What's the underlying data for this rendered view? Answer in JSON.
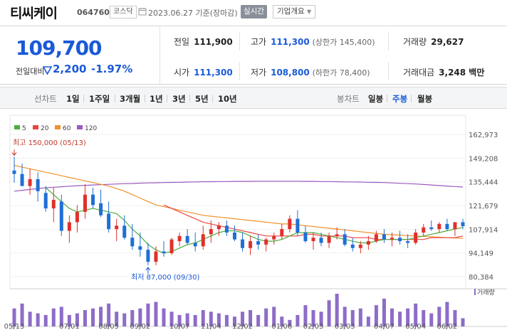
{
  "header": {
    "name": "티씨케이",
    "code": "064760",
    "market": "코스닥",
    "date_text": "2023.06.27 기준(장마감)",
    "realtime_label": "실시간",
    "info_label": "기업개요"
  },
  "quote": {
    "price": "109,700",
    "compare_label": "전일대비",
    "change": "2,200",
    "change_pct": "-1.97%",
    "prev_label": "전일",
    "prev": "111,900",
    "high_label": "고가",
    "high": "111,300",
    "upper_limit": "(상한가 145,400)",
    "volume_label": "거래량",
    "volume": "29,627",
    "open_label": "시가",
    "open": "111,300",
    "low_label": "저가",
    "low": "108,800",
    "lower_limit": "(하한가 78,400)",
    "amount_label": "거래대금",
    "amount": "3,248 백만"
  },
  "toolbar": {
    "line_label": "선차트",
    "line_opts": [
      "1일",
      "1주일",
      "3개월",
      "1년",
      "3년",
      "5년",
      "10년"
    ],
    "candle_label": "봉차트",
    "candle_opts": [
      "일봉",
      "주봉",
      "월봉"
    ],
    "candle_active": "주봉"
  },
  "colors": {
    "up": "#e0302b",
    "down": "#1f6fd6",
    "ma5": "#4cae3d",
    "ma20": "#e94540",
    "ma60": "#f0922b",
    "ma120": "#9b59c0",
    "volume": "#8e6cc8"
  },
  "chart_data": {
    "type": "candlestick",
    "legend": [
      "5",
      "20",
      "60",
      "120"
    ],
    "y_ticks": [
      162973,
      149208,
      135444,
      121679,
      107914,
      94149,
      80384
    ],
    "y_tick_labels": [
      "162,973",
      "149,208",
      "135,444",
      "121,679",
      "107,914",
      "94,149",
      "80,384"
    ],
    "ylim": [
      80384,
      162973
    ],
    "x_labels": [
      {
        "i": 0,
        "label": "05/13"
      },
      {
        "i": 7,
        "label": "07/01"
      },
      {
        "i": 12,
        "label": "08/05"
      },
      {
        "i": 16,
        "label": "09/02"
      },
      {
        "i": 21,
        "label": "10/07"
      },
      {
        "i": 25,
        "label": "11/04"
      },
      {
        "i": 29,
        "label": "12/02"
      },
      {
        "i": 34,
        "label": "01/06"
      },
      {
        "i": 38,
        "label": "02/03"
      },
      {
        "i": 42,
        "label": "03/03"
      },
      {
        "i": 47,
        "label": "04/07"
      },
      {
        "i": 51,
        "label": "05/04"
      },
      {
        "i": 55,
        "label": "06/02"
      }
    ],
    "high_annotation": "최고 150,000 (05/13)",
    "low_annotation": "최저 87,000 (09/30)",
    "volume_label": "거래량",
    "candles": [
      [
        142000,
        150000,
        135000,
        140000
      ],
      [
        140000,
        146000,
        133000,
        133000
      ],
      [
        133000,
        143000,
        128000,
        137000
      ],
      [
        137000,
        141000,
        124000,
        130000
      ],
      [
        129000,
        133000,
        118000,
        120000
      ],
      [
        120000,
        132000,
        112000,
        125000
      ],
      [
        124000,
        128000,
        104000,
        107000
      ],
      [
        107000,
        116000,
        100000,
        112000
      ],
      [
        112000,
        122000,
        106000,
        118000
      ],
      [
        118000,
        134000,
        114000,
        128000
      ],
      [
        128000,
        132000,
        120000,
        122000
      ],
      [
        123000,
        131000,
        115000,
        116000
      ],
      [
        117000,
        124000,
        106000,
        108000
      ],
      [
        108000,
        114000,
        101000,
        110000
      ],
      [
        110000,
        116000,
        102000,
        103000
      ],
      [
        103000,
        111000,
        96000,
        98000
      ],
      [
        98000,
        106000,
        92000,
        96000
      ],
      [
        96000,
        100000,
        87000,
        89000
      ],
      [
        89000,
        98000,
        87000,
        95000
      ],
      [
        95000,
        101000,
        92000,
        94000
      ],
      [
        94000,
        103000,
        93000,
        102000
      ],
      [
        101000,
        106000,
        98000,
        104000
      ],
      [
        104000,
        108000,
        99000,
        100000
      ],
      [
        100000,
        106000,
        95000,
        98000
      ],
      [
        98000,
        110000,
        96000,
        105000
      ],
      [
        105000,
        113000,
        100000,
        108000
      ],
      [
        108000,
        112000,
        104000,
        110000
      ],
      [
        110000,
        113000,
        104000,
        106000
      ],
      [
        106000,
        110000,
        101000,
        102000
      ],
      [
        102000,
        106000,
        95000,
        97000
      ],
      [
        97000,
        104000,
        93000,
        101000
      ],
      [
        101000,
        105000,
        96000,
        99000
      ],
      [
        99000,
        103000,
        95000,
        102000
      ],
      [
        102000,
        106000,
        99000,
        104000
      ],
      [
        104000,
        111000,
        102000,
        108000
      ],
      [
        108000,
        116000,
        106000,
        114000
      ],
      [
        114000,
        119000,
        104000,
        106000
      ],
      [
        106000,
        110000,
        100000,
        101000
      ],
      [
        101000,
        106000,
        96000,
        103000
      ],
      [
        103000,
        106000,
        98000,
        100000
      ],
      [
        100000,
        106000,
        97000,
        104000
      ],
      [
        104000,
        109000,
        102000,
        105000
      ],
      [
        105000,
        108000,
        98000,
        99000
      ],
      [
        99000,
        103000,
        95000,
        97000
      ],
      [
        97000,
        101000,
        94000,
        99000
      ],
      [
        99000,
        104000,
        96000,
        101000
      ],
      [
        101000,
        107000,
        100000,
        105000
      ],
      [
        105000,
        108000,
        100000,
        102000
      ],
      [
        102000,
        106000,
        98000,
        103000
      ],
      [
        103000,
        107000,
        99000,
        101000
      ],
      [
        101000,
        105000,
        97000,
        100000
      ],
      [
        100000,
        108000,
        99000,
        106000
      ],
      [
        106000,
        111000,
        104000,
        109000
      ],
      [
        109000,
        113000,
        107000,
        108000
      ],
      [
        108000,
        112000,
        106000,
        111000
      ],
      [
        111000,
        114000,
        107000,
        108000
      ],
      [
        108000,
        112000,
        104000,
        112000
      ],
      [
        112000,
        114000,
        108000,
        109700
      ]
    ],
    "ma5": [
      null,
      null,
      null,
      null,
      132000,
      128000,
      124000,
      120000,
      118000,
      119000,
      120000,
      119000,
      118000,
      117000,
      113000,
      108000,
      104000,
      99000,
      96000,
      94000,
      95000,
      97000,
      99000,
      100000,
      102000,
      104000,
      106000,
      107000,
      107000,
      106000,
      104000,
      102000,
      101000,
      101000,
      102000,
      104000,
      106000,
      106000,
      106000,
      105000,
      104000,
      103000,
      102000,
      101000,
      100000,
      100000,
      101000,
      102000,
      102000,
      102000,
      102000,
      103000,
      104000,
      105000,
      106000,
      107000,
      108000,
      109000
    ],
    "ma20": [
      null,
      null,
      null,
      null,
      null,
      null,
      null,
      null,
      null,
      null,
      null,
      null,
      null,
      null,
      null,
      null,
      null,
      null,
      null,
      122000,
      120000,
      118000,
      116000,
      114000,
      112000,
      111000,
      110000,
      109000,
      108000,
      107000,
      106000,
      105000,
      104000,
      104000,
      104000,
      104000,
      104000,
      105000,
      105000,
      104000,
      104000,
      104000,
      104000,
      103000,
      103000,
      103000,
      102000,
      102000,
      102000,
      102000,
      102000,
      102000,
      102000,
      103000,
      103000,
      103000,
      103000,
      104000
    ],
    "ma60": [
      145000,
      144000,
      143000,
      142000,
      141000,
      140000,
      139000,
      138000,
      137000,
      136000,
      135000,
      134000,
      133000,
      131500,
      130000,
      128000,
      126000,
      124000,
      122000,
      121000,
      120000,
      119000,
      118000,
      117000,
      116000,
      115500,
      115000,
      114500,
      114000,
      113500,
      113000,
      112500,
      112000,
      111500,
      111000,
      111000,
      110500,
      110000,
      109500,
      109000,
      108500,
      108000,
      107500,
      107000,
      106500,
      106000,
      105500,
      105000,
      104700,
      104500,
      104200,
      104000,
      103800,
      103500,
      103300,
      103000,
      102800,
      102700
    ],
    "ma120": [
      130000,
      130500,
      131000,
      131500,
      132000,
      132300,
      132600,
      132900,
      133200,
      133400,
      133600,
      133800,
      134000,
      134200,
      134400,
      134500,
      134700,
      134800,
      134900,
      135000,
      135100,
      135200,
      135300,
      135400,
      135500,
      135500,
      135600,
      135600,
      135700,
      135700,
      135700,
      135800,
      135800,
      135800,
      135800,
      135800,
      135800,
      135700,
      135700,
      135600,
      135600,
      135500,
      135400,
      135400,
      135300,
      135200,
      135100,
      135000,
      134800,
      134600,
      134400,
      134200,
      133900,
      133600,
      133300,
      133000,
      132700,
      132400
    ],
    "volumes": [
      0.55,
      0.7,
      0.45,
      0.4,
      0.35,
      0.55,
      0.6,
      0.35,
      0.4,
      0.5,
      0.55,
      0.6,
      0.7,
      0.45,
      0.4,
      0.5,
      0.55,
      0.7,
      0.75,
      0.55,
      0.45,
      0.35,
      0.4,
      0.35,
      0.5,
      0.45,
      0.4,
      0.35,
      0.3,
      0.45,
      0.5,
      0.35,
      0.55,
      0.6,
      0.3,
      0.2,
      0.35,
      0.65,
      0.5,
      0.45,
      0.8,
      1.0,
      0.6,
      0.5,
      0.55,
      0.3,
      0.65,
      0.85,
      0.55,
      0.45,
      0.55,
      0.7,
      0.5,
      0.4,
      0.6,
      0.75,
      0.5,
      0.25
    ]
  }
}
